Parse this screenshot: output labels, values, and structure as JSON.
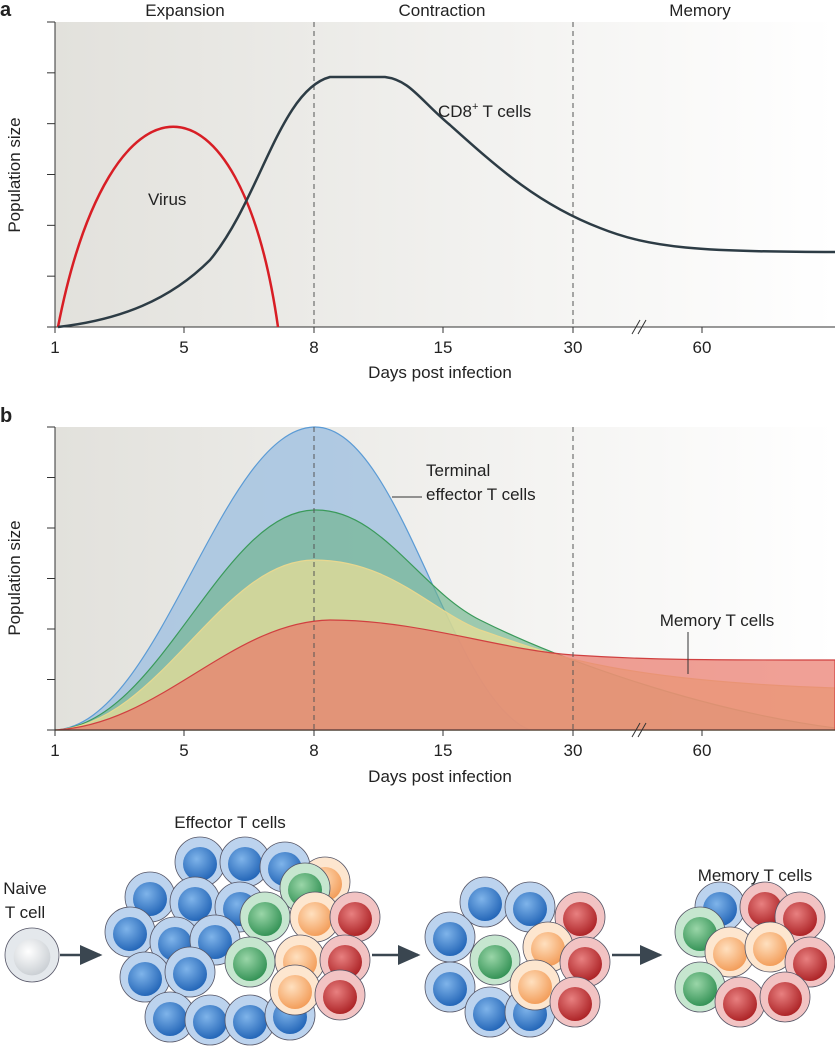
{
  "panel_a": {
    "label": "a",
    "phases": [
      "Expansion",
      "Contraction",
      "Memory"
    ],
    "y_axis_label": "Population size",
    "x_axis_label": "Days post infection",
    "x_ticks": [
      1,
      5,
      8,
      15,
      30,
      60
    ],
    "virus_label": "Virus",
    "cd8_label": {
      "main": "CD8",
      "sup": "+",
      "rest": "T cells"
    }
  },
  "panel_b": {
    "label": "b",
    "y_axis_label": "Population size",
    "x_axis_label": "Days post infection",
    "x_ticks": [
      1,
      5,
      8,
      15,
      30,
      60
    ],
    "terminal_label": [
      "Terminal",
      "effector T cells"
    ],
    "memory_label": "Memory T cells"
  },
  "panel_c": {
    "naive_label": [
      "Naive",
      "T cell"
    ],
    "effector_label": "Effector T cells",
    "memory_label": "Memory T cells"
  }
}
